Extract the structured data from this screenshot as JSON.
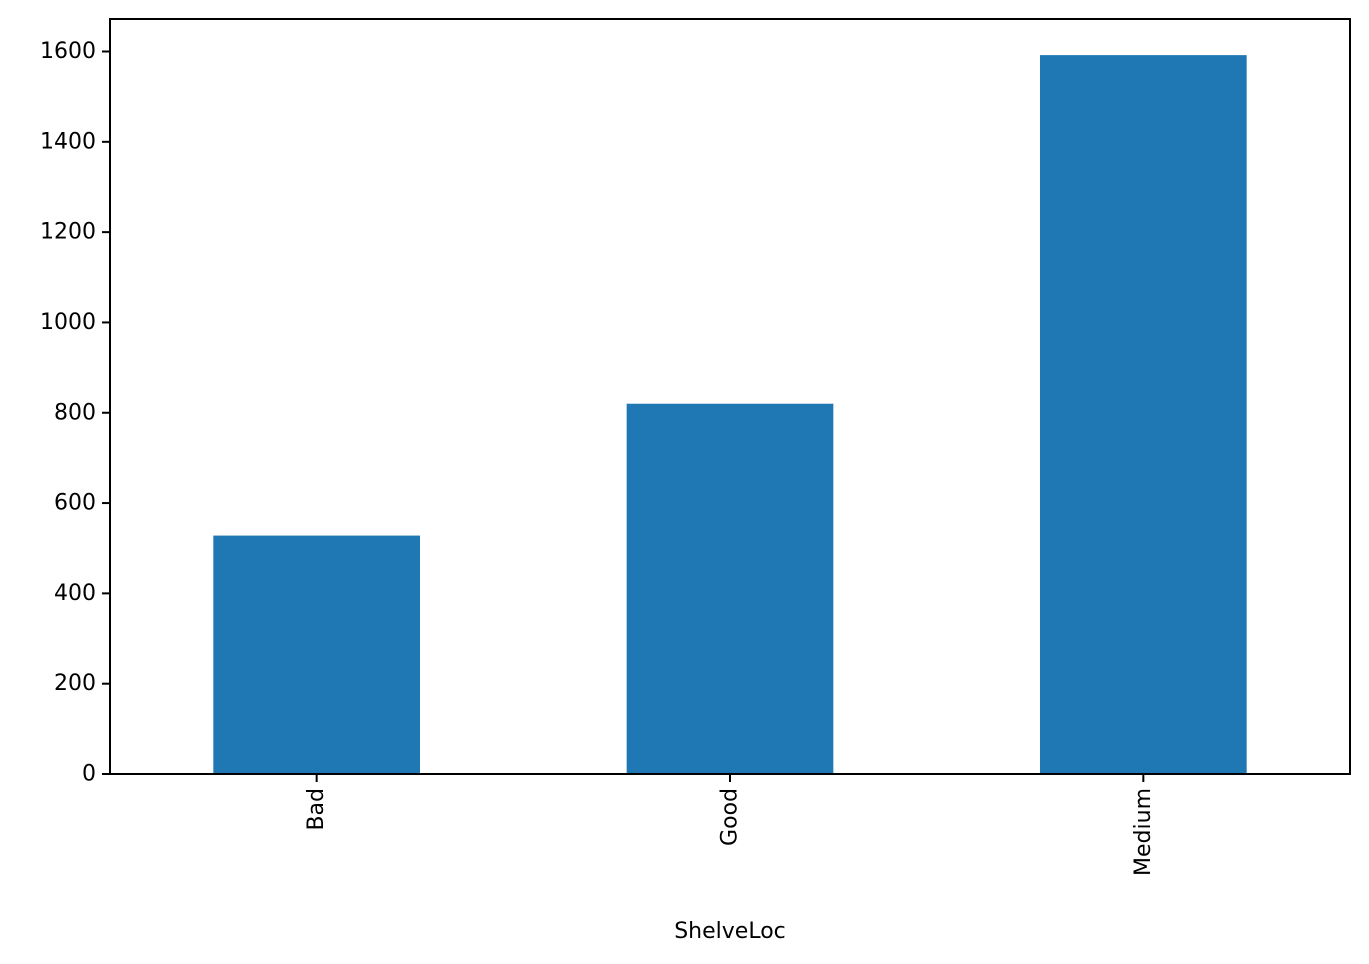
{
  "chart_data": {
    "type": "bar",
    "title": "",
    "xlabel": "ShelveLoc",
    "ylabel": "",
    "categories": [
      "Bad",
      "Good",
      "Medium"
    ],
    "values": [
      528,
      820,
      1592
    ],
    "ylim": [
      0,
      1672
    ],
    "yticks": [
      0,
      200,
      400,
      600,
      800,
      1000,
      1200,
      1400,
      1600
    ],
    "bar_color": "#1f77b4",
    "grid": false,
    "legend": "none",
    "xtick_rotation": "vertical"
  }
}
